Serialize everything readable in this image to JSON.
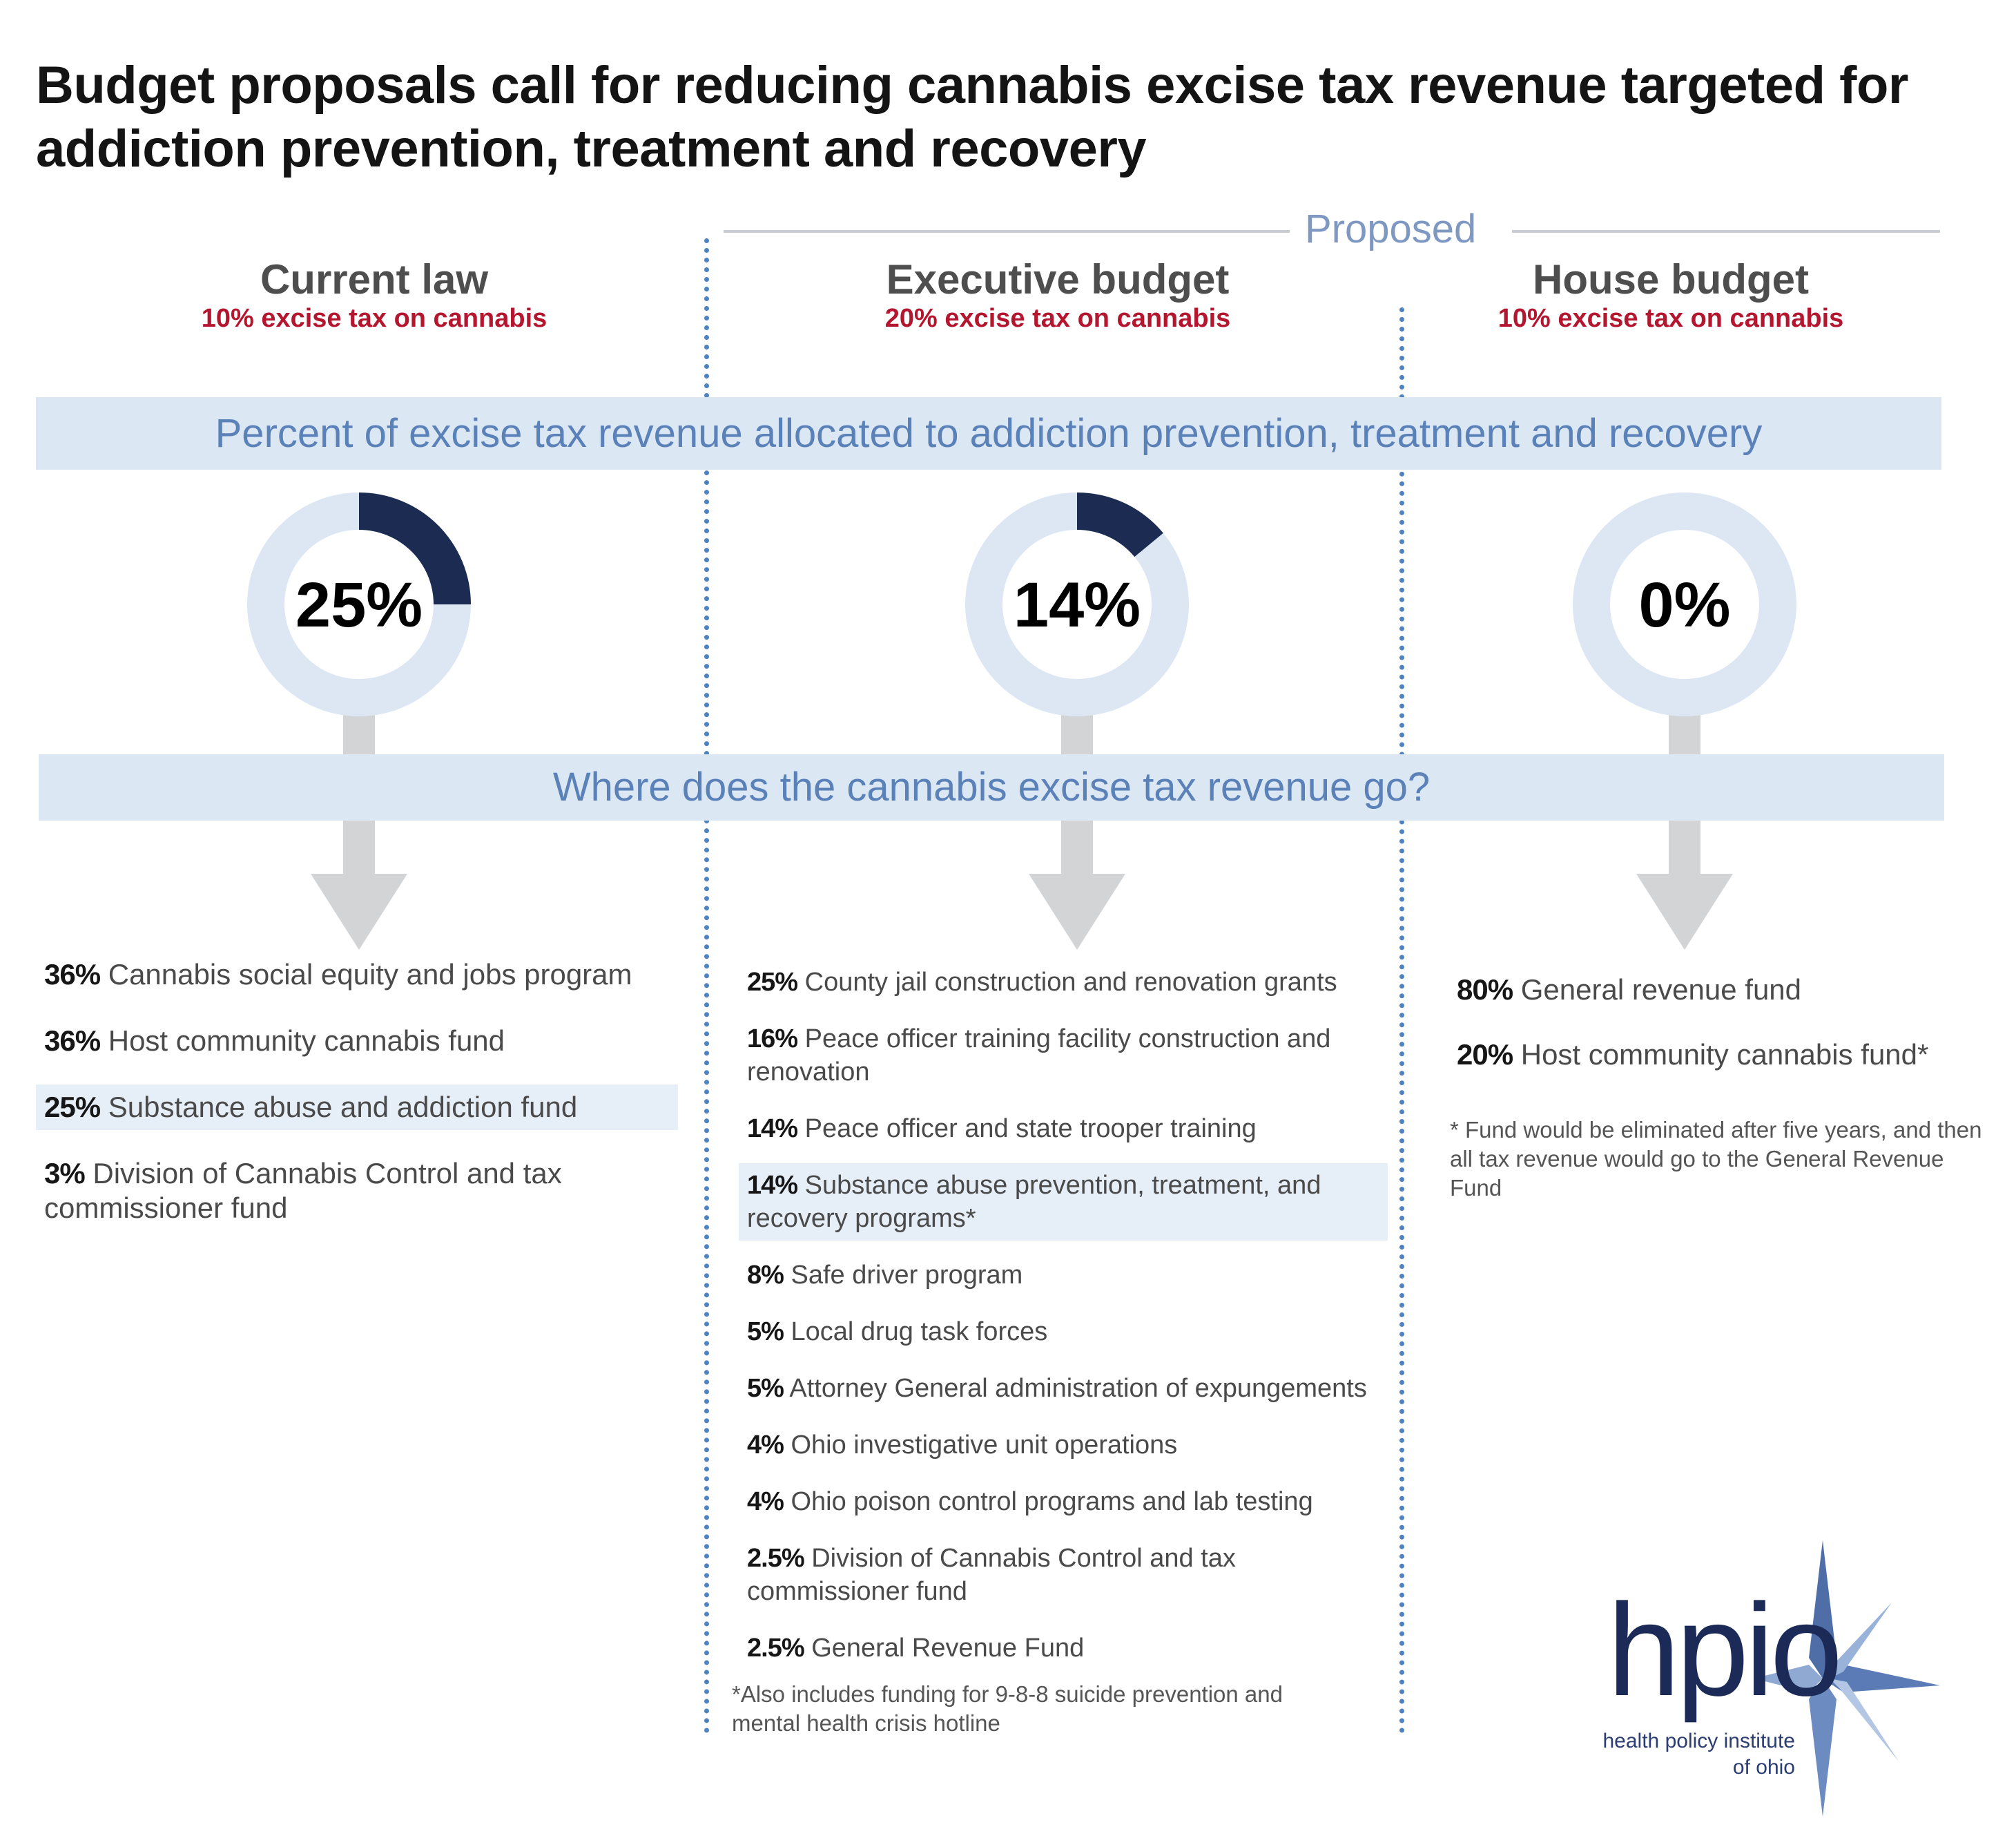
{
  "title": "Budget proposals call for reducing cannabis excise tax revenue targeted for addiction prevention, treatment and recovery",
  "proposed_label": "Proposed",
  "columns": [
    {
      "heading": "Current law",
      "subheading": "10% excise tax on cannabis"
    },
    {
      "heading": "Executive budget",
      "subheading": "20% excise tax on cannabis"
    },
    {
      "heading": "House budget",
      "subheading": "10% excise tax on cannabis"
    }
  ],
  "band_allocation": "Percent of excise tax revenue allocated to addiction prevention, treatment and recovery",
  "band_where": "Where does the cannabis excise tax revenue go?",
  "colors": {
    "accent_dark": "#1c2b52",
    "ring_light": "#dde7f4",
    "band": "#dce7f4",
    "subheading_red": "#b5162f",
    "arrow": "#d3d4d6",
    "divider_dots": "#4f82c0"
  },
  "chart_data": {
    "type": "pie",
    "charts": [
      {
        "label": "25%",
        "value": 25
      },
      {
        "label": "14%",
        "value": 14
      },
      {
        "label": "0%",
        "value": 0
      }
    ]
  },
  "allocations": {
    "current": [
      {
        "pct": "36%",
        "text": "Cannabis social equity and jobs program",
        "highlight": false
      },
      {
        "pct": "36%",
        "text": "Host community cannabis fund",
        "highlight": false
      },
      {
        "pct": "25%",
        "text": "Substance abuse and addiction fund",
        "highlight": true
      },
      {
        "pct": "3%",
        "text": "Division of Cannabis Control and tax commissioner fund",
        "highlight": false
      }
    ],
    "executive": [
      {
        "pct": "25%",
        "text": "County jail construction and renovation grants",
        "highlight": false
      },
      {
        "pct": "16%",
        "text": "Peace officer training facility construction and renovation",
        "highlight": false
      },
      {
        "pct": "14%",
        "text": "Peace officer and state trooper training",
        "highlight": false
      },
      {
        "pct": "14%",
        "text": "Substance abuse prevention, treatment, and recovery programs*",
        "highlight": true
      },
      {
        "pct": "8%",
        "text": "Safe driver program",
        "highlight": false
      },
      {
        "pct": "5%",
        "text": "Local drug task forces",
        "highlight": false
      },
      {
        "pct": "5%",
        "text": "Attorney General administration of expungements",
        "highlight": false
      },
      {
        "pct": "4%",
        "text": "Ohio investigative unit operations",
        "highlight": false
      },
      {
        "pct": "4%",
        "text": "Ohio poison control programs and lab testing",
        "highlight": false
      },
      {
        "pct": "2.5%",
        "text": "Division of Cannabis Control and tax commissioner fund",
        "highlight": false
      },
      {
        "pct": "2.5%",
        "text": "General Revenue Fund",
        "highlight": false
      }
    ],
    "house": [
      {
        "pct": "80%",
        "text": "General revenue fund",
        "highlight": false
      },
      {
        "pct": "20%",
        "text": "Host community cannabis fund*",
        "highlight": false
      }
    ]
  },
  "notes": {
    "executive": "*Also includes funding for 9-8-8 suicide prevention and mental health crisis hotline",
    "house": "* Fund would be eliminated after five years, and then all tax revenue would go to the General Revenue Fund"
  },
  "logo": {
    "wordmark": "hpio",
    "line1": "health policy institute",
    "line2": "of ohio",
    "icon": "compass-star-icon"
  }
}
